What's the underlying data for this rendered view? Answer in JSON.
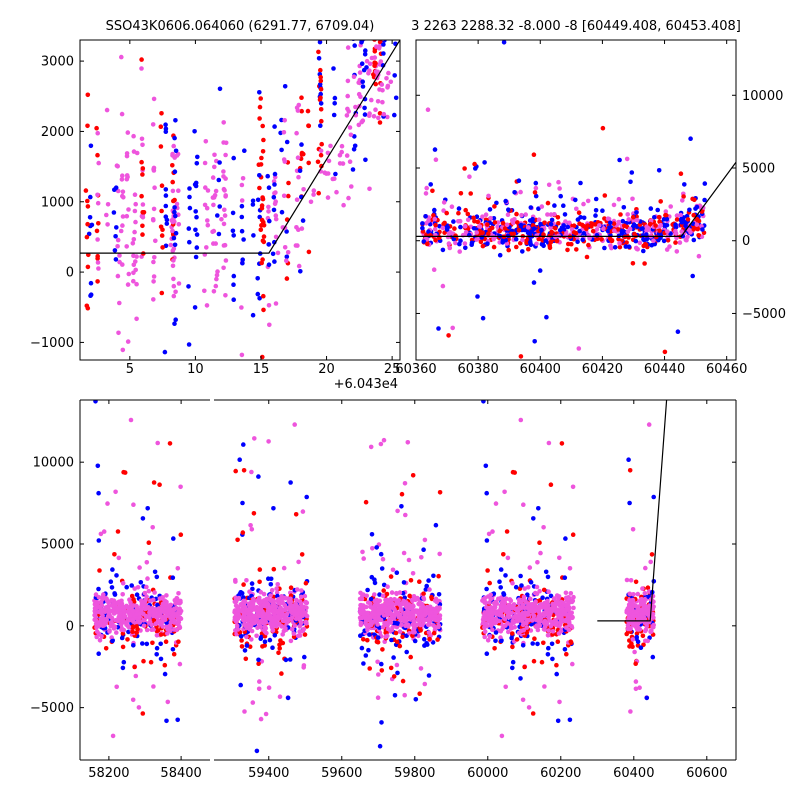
{
  "chart_data": [
    {
      "id": "top-left",
      "type": "scatter",
      "title": "SSO43K0606.064060 (6291.77, 6709.04)",
      "xlim": [
        1.2,
        25.6
      ],
      "ylim": [
        -1250,
        3300
      ],
      "xticks": [
        5,
        10,
        15,
        20,
        25
      ],
      "xtick_labels": [
        "5",
        "10",
        "15",
        "20",
        "25"
      ],
      "yticks": [
        -1000,
        0,
        1000,
        2000,
        3000
      ],
      "ytick_labels": [
        "−1000",
        "0",
        "1000",
        "2000",
        "3000"
      ],
      "ytick_side": "left",
      "x_offset_label": "+6.043e4",
      "model_line": [
        [
          1.2,
          270
        ],
        [
          15.6,
          270
        ],
        [
          25.6,
          3300
        ]
      ]
    },
    {
      "id": "top-right",
      "type": "scatter",
      "title": "3 2263 2288.32 -8.000 -8 [60449.408, 60453.408]",
      "xlim": [
        60360,
        60463
      ],
      "ylim": [
        -8200,
        13800
      ],
      "xticks": [
        60360,
        60380,
        60400,
        60420,
        60440,
        60460
      ],
      "xtick_labels": [
        "60360",
        "60380",
        "60400",
        "60420",
        "60440",
        "60460"
      ],
      "yticks": [
        -5000,
        0,
        5000,
        10000
      ],
      "ytick_labels": [
        "−5000",
        "0",
        "5000",
        "10000"
      ],
      "ytick_side": "right",
      "model_line": [
        [
          60360,
          300
        ],
        [
          60445.4,
          300
        ],
        [
          60463,
          5400
        ]
      ]
    },
    {
      "id": "bottom",
      "type": "scatter",
      "title": "",
      "ylim": [
        -8200,
        13800
      ],
      "yticks": [
        -5000,
        0,
        5000,
        10000
      ],
      "ytick_labels": [
        "−5000",
        "0",
        "5000",
        "10000"
      ],
      "ytick_side": "left",
      "segments": [
        {
          "xlim": [
            58120,
            58480
          ],
          "xticks": [
            58200,
            58400
          ],
          "xtick_labels": [
            "58200",
            "58400"
          ]
        },
        {
          "xlim": [
            59250,
            60680
          ],
          "xticks": [
            59400,
            59600,
            59800,
            60000,
            60200,
            60400,
            60600
          ],
          "xtick_labels": [
            "59400",
            "59600",
            "59800",
            "60000",
            "60200",
            "60400",
            "60600"
          ]
        }
      ],
      "model_line": [
        [
          60300,
          300
        ],
        [
          60445,
          300
        ],
        [
          60490,
          13800
        ]
      ]
    }
  ],
  "series_colors": {
    "g": "#0000ff",
    "r": "#ff0000",
    "i": "#ee55dd"
  }
}
